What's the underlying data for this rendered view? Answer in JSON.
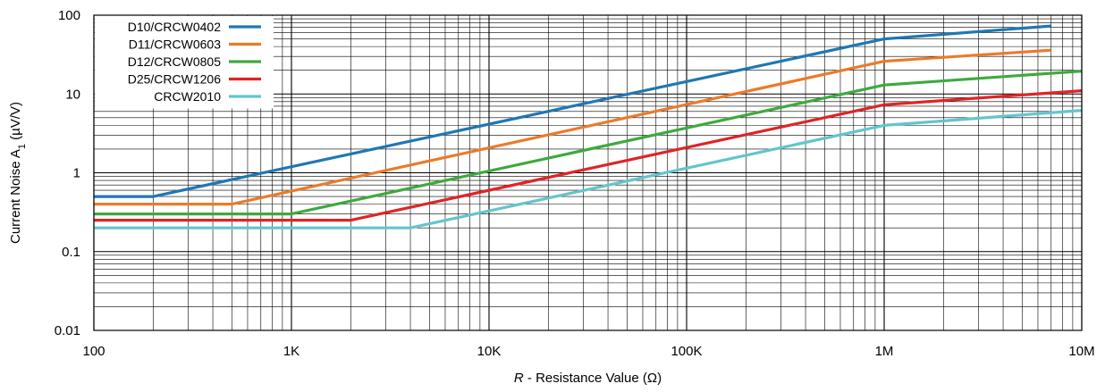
{
  "chart_data": {
    "type": "line",
    "title": "",
    "xscale": "log",
    "yscale": "log",
    "xlim": [
      100,
      10000000
    ],
    "ylim": [
      0.01,
      100
    ],
    "grid": true,
    "legend_position": "top-left",
    "xlabel_italic": "R",
    "xlabel_rest": " - Resistance Value (Ω)",
    "ylabel_main": "Current Noise A",
    "ylabel_sub": "1",
    "ylabel_unit": " (µV/V)",
    "x_ticks": [
      {
        "value": 100,
        "label": "100"
      },
      {
        "value": 1000,
        "label": "1K"
      },
      {
        "value": 10000,
        "label": "10K"
      },
      {
        "value": 100000,
        "label": "100K"
      },
      {
        "value": 1000000,
        "label": "1M"
      },
      {
        "value": 10000000,
        "label": "10M"
      }
    ],
    "y_ticks": [
      {
        "value": 0.01,
        "label": "0.01"
      },
      {
        "value": 0.1,
        "label": "0.1"
      },
      {
        "value": 1,
        "label": "1"
      },
      {
        "value": 10,
        "label": "10"
      },
      {
        "value": 100,
        "label": "100"
      }
    ],
    "series": [
      {
        "name": "D10/CRCW0402",
        "color": "#1f77b4",
        "points": [
          [
            100,
            0.5
          ],
          [
            200,
            0.5
          ],
          [
            1000000,
            50
          ],
          [
            7000000,
            73
          ]
        ]
      },
      {
        "name": "D11/CRCW0603",
        "color": "#ec7a2b",
        "points": [
          [
            100,
            0.4
          ],
          [
            500,
            0.4
          ],
          [
            1000000,
            26
          ],
          [
            7000000,
            36
          ]
        ]
      },
      {
        "name": "D12/CRCW0805",
        "color": "#3daa3d",
        "points": [
          [
            100,
            0.3
          ],
          [
            1000,
            0.3
          ],
          [
            1000000,
            13
          ],
          [
            10000000,
            19.5
          ]
        ]
      },
      {
        "name": "D25/CRCW1206",
        "color": "#e02426",
        "points": [
          [
            100,
            0.25
          ],
          [
            2000,
            0.25
          ],
          [
            1000000,
            7.3
          ],
          [
            10000000,
            11
          ]
        ]
      },
      {
        "name": "CRCW2010",
        "color": "#62c5cd",
        "points": [
          [
            100,
            0.2
          ],
          [
            4000,
            0.2
          ],
          [
            1000000,
            4
          ],
          [
            10000000,
            6.2
          ]
        ]
      }
    ]
  }
}
